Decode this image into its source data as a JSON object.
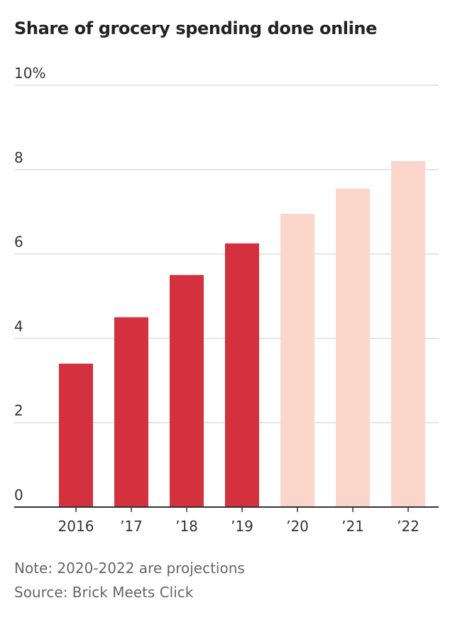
{
  "chart_data": {
    "type": "bar",
    "title": "Share of grocery spending done online",
    "categories": [
      "2016",
      "’17",
      "’18",
      "’19",
      "’20",
      "’21",
      "’22"
    ],
    "values": [
      3.4,
      4.5,
      5.5,
      6.25,
      6.95,
      7.55,
      8.2
    ],
    "projected": [
      false,
      false,
      false,
      false,
      true,
      true,
      true
    ],
    "ylim": [
      0,
      10
    ],
    "yticks": [
      0,
      2,
      4,
      6,
      8,
      10
    ],
    "ytick_labels": [
      "0",
      "2",
      "4",
      "6",
      "8",
      "10%"
    ],
    "xlabel": "",
    "ylabel": "",
    "grid": true,
    "colors": {
      "actual": "#d2313d",
      "projected": "#fcd6cb",
      "grid": "#dddddd",
      "axis": "#333333"
    }
  },
  "notes": {
    "note": "Note: 2020-2022 are projections",
    "source": "Source: Brick Meets Click"
  }
}
